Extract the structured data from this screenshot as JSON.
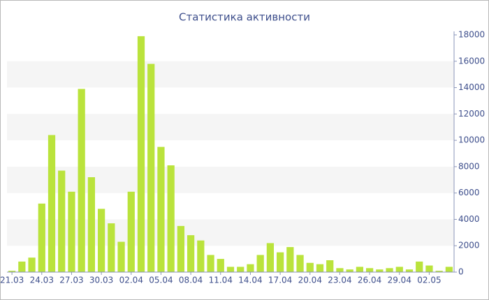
{
  "chart_data": {
    "type": "bar",
    "title": "Статистика активности",
    "categories": [
      "21.03",
      null,
      null,
      "24.03",
      null,
      null,
      "27.03",
      null,
      null,
      "30.03",
      null,
      null,
      "02.04",
      null,
      null,
      "05.04",
      null,
      null,
      "08.04",
      null,
      null,
      "11.04",
      null,
      null,
      "14.04",
      null,
      null,
      "17.04",
      null,
      null,
      "20.04",
      null,
      null,
      "23.04",
      null,
      null,
      "26.04",
      null,
      null,
      "29.04",
      null,
      null,
      "02.05",
      null,
      null
    ],
    "values": [
      100,
      800,
      1100,
      5200,
      10400,
      7700,
      6100,
      13900,
      7200,
      4800,
      3700,
      2300,
      6100,
      17900,
      15800,
      9500,
      8100,
      3500,
      2800,
      2400,
      1300,
      1000,
      400,
      400,
      600,
      1300,
      2200,
      1500,
      1900,
      1300,
      700,
      600,
      900,
      300,
      200,
      400,
      300,
      200,
      300,
      400,
      200,
      800,
      500,
      100,
      400
    ],
    "color": "#bae33c",
    "ylim": [
      0,
      18000
    ],
    "yticks": [
      0,
      2000,
      4000,
      6000,
      8000,
      10000,
      12000,
      14000,
      16000,
      18000
    ],
    "grid": "bands",
    "y_axis_side": "right"
  }
}
